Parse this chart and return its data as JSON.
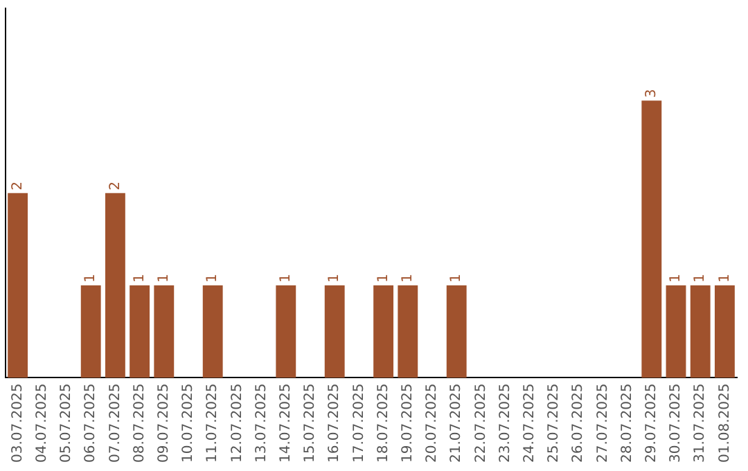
{
  "chart_data": {
    "type": "bar",
    "categories": [
      "03.07.2025",
      "04.07.2025",
      "05.07.2025",
      "06.07.2025",
      "07.07.2025",
      "08.07.2025",
      "09.07.2025",
      "10.07.2025",
      "11.07.2025",
      "12.07.2025",
      "13.07.2025",
      "14.07.2025",
      "15.07.2025",
      "16.07.2025",
      "17.07.2025",
      "18.07.2025",
      "19.07.2025",
      "20.07.2025",
      "21.07.2025",
      "22.07.2025",
      "23.07.2025",
      "24.07.2025",
      "25.07.2025",
      "26.07.2025",
      "27.07.2025",
      "28.07.2025",
      "29.07.2025",
      "30.07.2025",
      "31.07.2025",
      "01.08.2025"
    ],
    "values": [
      2,
      0,
      0,
      1,
      2,
      1,
      1,
      0,
      1,
      0,
      0,
      1,
      0,
      1,
      0,
      1,
      1,
      0,
      1,
      0,
      0,
      0,
      0,
      0,
      0,
      0,
      3,
      1,
      1,
      1
    ],
    "value_labels": [
      "2",
      null,
      null,
      "1",
      "2",
      "1",
      "1",
      null,
      "1",
      null,
      null,
      "1",
      null,
      "1",
      null,
      "1",
      "1",
      null,
      "1",
      null,
      null,
      null,
      null,
      null,
      null,
      null,
      "3",
      "1",
      "1",
      "1"
    ],
    "color": "#a0522d",
    "grid": false,
    "legend": false,
    "tick_labels": "x"
  }
}
